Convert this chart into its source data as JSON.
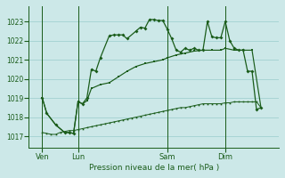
{
  "title": "Pression niveau de la mer( hPa )",
  "background_color": "#cce8e8",
  "grid_color": "#99cccc",
  "line_color": "#1a5c1a",
  "xlim": [
    0,
    56
  ],
  "ylim": [
    1016.4,
    1023.8
  ],
  "yticks": [
    1017,
    1018,
    1019,
    1020,
    1021,
    1022,
    1023
  ],
  "xtick_positions": [
    3,
    11,
    31,
    44
  ],
  "xtick_labels": [
    "Ven",
    "Lun",
    "Sam",
    "Dim"
  ],
  "vlines": [
    3,
    11,
    31,
    44
  ],
  "series_linear": {
    "x": [
      3,
      4,
      5,
      6,
      7,
      8,
      9,
      10,
      11,
      12,
      13,
      14,
      15,
      16,
      17,
      18,
      19,
      20,
      21,
      22,
      23,
      24,
      25,
      26,
      27,
      28,
      29,
      30,
      31,
      32,
      33,
      34,
      35,
      36,
      37,
      38,
      39,
      40,
      41,
      42,
      43,
      44,
      45,
      46,
      47,
      48,
      49,
      50,
      51,
      52
    ],
    "y": [
      1017.2,
      1017.15,
      1017.1,
      1017.1,
      1017.2,
      1017.25,
      1017.3,
      1017.3,
      1017.35,
      1017.4,
      1017.45,
      1017.5,
      1017.55,
      1017.6,
      1017.65,
      1017.7,
      1017.75,
      1017.8,
      1017.85,
      1017.9,
      1017.95,
      1018.0,
      1018.05,
      1018.1,
      1018.15,
      1018.2,
      1018.25,
      1018.3,
      1018.35,
      1018.4,
      1018.45,
      1018.5,
      1018.5,
      1018.55,
      1018.6,
      1018.65,
      1018.7,
      1018.7,
      1018.7,
      1018.7,
      1018.7,
      1018.75,
      1018.75,
      1018.8,
      1018.8,
      1018.8,
      1018.8,
      1018.8,
      1018.8,
      1018.5
    ]
  },
  "series_mid": {
    "x": [
      3,
      4,
      6,
      8,
      9,
      10,
      11,
      12,
      13,
      14,
      16,
      18,
      20,
      22,
      24,
      26,
      28,
      30,
      31,
      33,
      35,
      37,
      39,
      41,
      43,
      44,
      46,
      48,
      50,
      52
    ],
    "y": [
      1019.0,
      1018.2,
      1017.6,
      1017.2,
      1017.2,
      1017.15,
      1018.8,
      1018.7,
      1018.85,
      1019.5,
      1019.7,
      1019.8,
      1020.1,
      1020.4,
      1020.65,
      1020.8,
      1020.9,
      1021.0,
      1021.1,
      1021.25,
      1021.35,
      1021.45,
      1021.5,
      1021.5,
      1021.5,
      1021.6,
      1021.5,
      1021.5,
      1021.5,
      1018.5
    ]
  },
  "series_high": {
    "x": [
      3,
      4,
      6,
      8,
      9,
      10,
      11,
      12,
      13,
      14,
      15,
      16,
      18,
      19,
      20,
      21,
      22,
      24,
      25,
      26,
      27,
      28,
      29,
      30,
      31,
      32,
      33,
      34,
      35,
      36,
      37,
      38,
      39,
      40,
      41,
      42,
      43,
      44,
      45,
      46,
      47,
      48,
      49,
      50,
      51,
      52
    ],
    "y": [
      1019.0,
      1018.2,
      1017.6,
      1017.2,
      1017.2,
      1017.15,
      1018.8,
      1018.7,
      1019.0,
      1020.5,
      1020.4,
      1021.1,
      1022.25,
      1022.3,
      1022.3,
      1022.3,
      1022.1,
      1022.5,
      1022.7,
      1022.65,
      1023.1,
      1023.1,
      1023.05,
      1023.05,
      1022.6,
      1022.1,
      1021.5,
      1021.4,
      1021.6,
      1021.5,
      1021.6,
      1021.5,
      1021.5,
      1023.0,
      1022.2,
      1022.15,
      1022.15,
      1023.0,
      1022.0,
      1021.6,
      1021.5,
      1021.5,
      1020.4,
      1020.4,
      1018.4,
      1018.5
    ]
  }
}
